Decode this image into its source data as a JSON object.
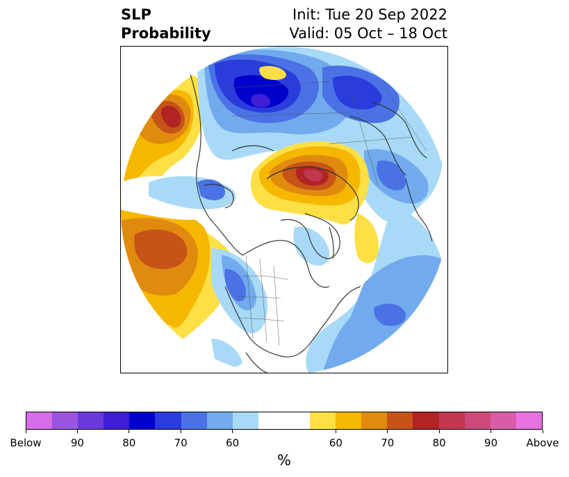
{
  "title": {
    "left_line1": "SLP",
    "left_line2": "Probability",
    "right_line1": "Init: Tue 20 Sep 2022",
    "right_line2": "Valid: 05 Oct – 18 Oct"
  },
  "colorbar": {
    "colors": [
      "#d56de8",
      "#9a54e0",
      "#6a3ad8",
      "#3f1ed3",
      "#0000cc",
      "#2a3cdc",
      "#4a72e4",
      "#72aaee",
      "#a8daf8",
      "#ffffff",
      "#ffffff",
      "#fedf45",
      "#f5b700",
      "#e08b10",
      "#c65418",
      "#b12424",
      "#c03750",
      "#cc4a7a",
      "#da5ca8",
      "#e873e0"
    ],
    "tick_labels": [
      "Below",
      "90",
      "80",
      "70",
      "60",
      "60",
      "70",
      "80",
      "90",
      "Above"
    ],
    "tick_index": [
      0,
      2,
      4,
      6,
      8,
      12,
      14,
      16,
      18,
      20
    ],
    "unit": "%"
  },
  "map": {
    "projection": "north-polar-stereographic",
    "field": "SLP probability anomaly",
    "colors": {
      "blue_light": "#a8daf8",
      "blue_mid": "#72aaee",
      "blue_med": "#4a72e4",
      "blue_deep": "#2a3cdc",
      "blue_dark": "#0000cc",
      "blue_darkest": "#3f1ed3",
      "yellow": "#fedf45",
      "gold": "#f5b700",
      "orange": "#e08b10",
      "orange_dark": "#c65418",
      "red": "#b12424",
      "red_pink": "#c03750",
      "coast": "#333333"
    }
  }
}
